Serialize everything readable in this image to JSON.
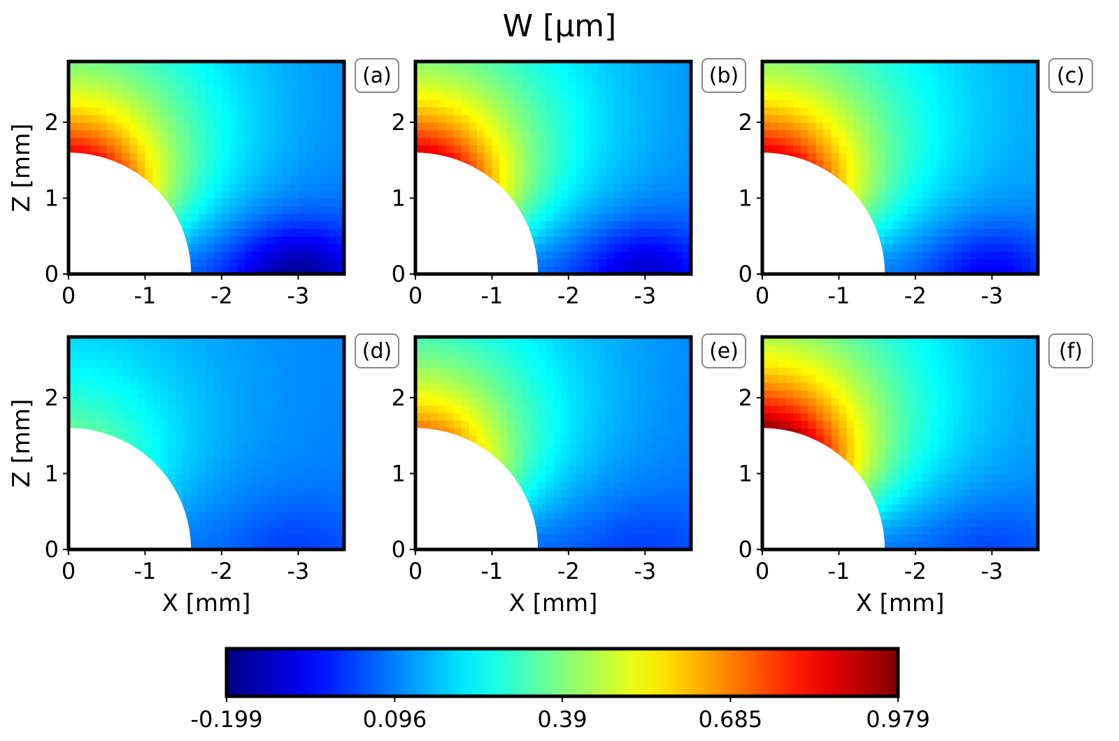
{
  "chart_data": {
    "type": "heatmap",
    "title": "W [μm]",
    "xlabel": "X [mm]",
    "ylabel": "Z [mm]",
    "colormap": "jet",
    "colorbar": {
      "ticks": [
        "-0.199",
        "0.096",
        "0.39",
        "0.685",
        "0.979"
      ],
      "min": -0.199,
      "max": 0.979
    },
    "x_ticks": [
      "0",
      "-1",
      "-2",
      "-3"
    ],
    "y_ticks": [
      "0",
      "1",
      "2"
    ],
    "xlim": [
      0,
      -3.6
    ],
    "ylim": [
      0,
      2.8
    ],
    "hole_radius_mm": 1.6,
    "panels": [
      {
        "label": "(a)",
        "max_value": 0.85,
        "far_low": -0.17,
        "far_corner_value": 0.08
      },
      {
        "label": "(b)",
        "max_value": 0.88,
        "far_low": -0.11,
        "far_corner_value": 0.09
      },
      {
        "label": "(c)",
        "max_value": 0.87,
        "far_low": -0.06,
        "far_corner_value": 0.11
      },
      {
        "label": "(d)",
        "max_value": 0.36,
        "far_low": 0.02,
        "far_corner_value": 0.09
      },
      {
        "label": "(e)",
        "max_value": 0.7,
        "far_low": 0.02,
        "far_corner_value": 0.08
      },
      {
        "label": "(f)",
        "max_value": 0.97,
        "far_low": 0.03,
        "far_corner_value": 0.1
      }
    ]
  }
}
